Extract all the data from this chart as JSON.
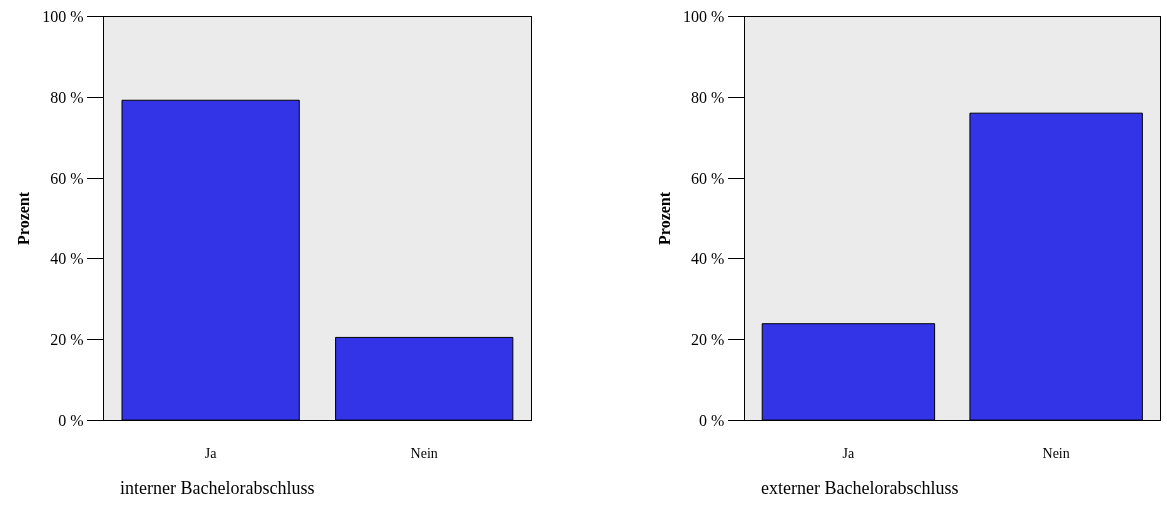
{
  "chart_data": [
    {
      "type": "bar",
      "xlabel": "interner Bachelorabschluss",
      "ylabel": "Prozent",
      "categories": [
        "Ja",
        "Nein"
      ],
      "values": [
        79.3,
        20.5
      ],
      "color": "#3333e8",
      "ylim": [
        0,
        100
      ],
      "yticks": [
        {
          "value": 0,
          "label": "0 %"
        },
        {
          "value": 20,
          "label": "20 %"
        },
        {
          "value": 40,
          "label": "40 %"
        },
        {
          "value": 60,
          "label": "60 %"
        },
        {
          "value": 80,
          "label": "80 %"
        },
        {
          "value": 100,
          "label": "100 %"
        }
      ],
      "grid": false
    },
    {
      "type": "bar",
      "xlabel": "externer Bachelorabschluss",
      "ylabel": "Prozent",
      "categories": [
        "Ja",
        "Nein"
      ],
      "values": [
        23.9,
        76.1
      ],
      "color": "#3333e8",
      "ylim": [
        0,
        100
      ],
      "yticks": [
        {
          "value": 0,
          "label": "0 %"
        },
        {
          "value": 20,
          "label": "20 %"
        },
        {
          "value": 40,
          "label": "40 %"
        },
        {
          "value": 60,
          "label": "60 %"
        },
        {
          "value": 80,
          "label": "80 %"
        },
        {
          "value": 100,
          "label": "100 %"
        }
      ],
      "grid": false
    }
  ]
}
